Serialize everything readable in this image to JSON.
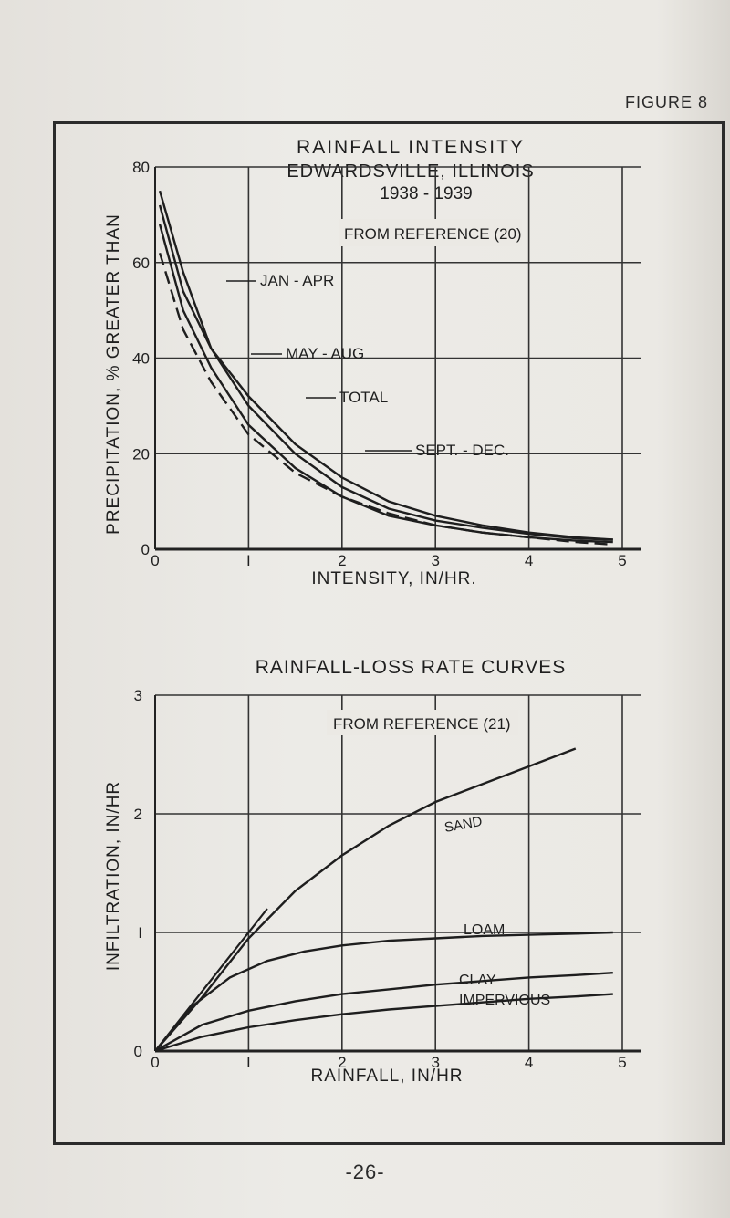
{
  "figure_label": "FIGURE 8",
  "page_number": "-26-",
  "chart_data": [
    {
      "type": "line",
      "title": "RAINFALL INTENSITY",
      "subtitle": "EDWARDSVILLE, ILLINOIS",
      "period": "1938 - 1939",
      "source_note": "FROM REFERENCE (20)",
      "xlabel": "INTENSITY, IN/HR.",
      "ylabel": "PRECIPITATION, % GREATER THAN",
      "xlim": [
        0,
        5
      ],
      "ylim": [
        0,
        80
      ],
      "x_ticks": [
        0,
        1,
        2,
        3,
        4,
        5
      ],
      "x_tick_labels": [
        "0",
        "I",
        "2",
        "3",
        "4",
        "5"
      ],
      "y_ticks": [
        0,
        20,
        40,
        60,
        80
      ],
      "y_tick_labels": [
        "0",
        "20",
        "40",
        "60",
        "80"
      ],
      "grid": true,
      "series": [
        {
          "name": "JAN - APR",
          "style": "solid",
          "x": [
            0.05,
            0.3,
            0.6,
            1.0,
            1.5,
            2.0,
            2.5,
            3.0,
            3.5,
            4.0,
            4.5,
            4.9
          ],
          "y": [
            75,
            58,
            42,
            30,
            20,
            13,
            8.5,
            6,
            4.5,
            3.2,
            2.3,
            2
          ]
        },
        {
          "name": "MAY - AUG",
          "style": "solid",
          "x": [
            0.05,
            0.3,
            0.6,
            1.0,
            1.5,
            2.0,
            2.5,
            3.0,
            3.5,
            4.0,
            4.5,
            4.9
          ],
          "y": [
            72,
            54,
            42,
            32,
            22,
            15,
            10,
            7,
            5,
            3.5,
            2.5,
            2
          ]
        },
        {
          "name": "TOTAL",
          "style": "solid",
          "x": [
            0.05,
            0.3,
            0.6,
            1.0,
            1.5,
            2.0,
            2.5,
            3.0,
            3.5,
            4.0,
            4.5,
            4.9
          ],
          "y": [
            68,
            50,
            38,
            26,
            17,
            11,
            7,
            5,
            3.5,
            2.5,
            1.8,
            1.5
          ]
        },
        {
          "name": "SEPT. - DEC.",
          "style": "dashed",
          "x": [
            0.05,
            0.3,
            0.6,
            1.0,
            1.5,
            2.0,
            2.5,
            3.0,
            3.5,
            4.0,
            4.5,
            4.9
          ],
          "y": [
            62,
            46,
            35,
            24,
            16,
            11,
            7.5,
            5,
            3.5,
            2.5,
            1.5,
            1
          ]
        }
      ]
    },
    {
      "type": "line",
      "title": "RAINFALL-LOSS RATE CURVES",
      "source_note": "FROM REFERENCE (21)",
      "xlabel": "RAINFALL, IN/HR",
      "ylabel": "INFILTRATION, IN/HR",
      "xlim": [
        0,
        5
      ],
      "ylim": [
        0,
        3
      ],
      "x_ticks": [
        0,
        1,
        2,
        3,
        4,
        5
      ],
      "x_tick_labels": [
        "0",
        "I",
        "2",
        "3",
        "4",
        "5"
      ],
      "y_ticks": [
        0,
        1,
        2,
        3
      ],
      "y_tick_labels": [
        "0",
        "I",
        "2",
        "3"
      ],
      "grid": true,
      "reference_line": {
        "x": [
          0,
          1.2
        ],
        "y": [
          0,
          1.2
        ]
      },
      "series": [
        {
          "name": "SAND",
          "x": [
            0,
            0.5,
            1.0,
            1.5,
            2.0,
            2.5,
            3.0,
            3.5,
            4.0,
            4.5
          ],
          "y": [
            0,
            0.45,
            0.95,
            1.35,
            1.65,
            1.9,
            2.1,
            2.25,
            2.4,
            2.55
          ]
        },
        {
          "name": "LOAM",
          "x": [
            0,
            0.4,
            0.8,
            1.2,
            1.6,
            2.0,
            2.5,
            3.0,
            3.5,
            4.0,
            4.5,
            4.9
          ],
          "y": [
            0,
            0.38,
            0.62,
            0.76,
            0.84,
            0.89,
            0.93,
            0.95,
            0.97,
            0.98,
            0.99,
            1.0
          ]
        },
        {
          "name": "CLAY",
          "x": [
            0,
            0.5,
            1.0,
            1.5,
            2.0,
            2.5,
            3.0,
            3.5,
            4.0,
            4.5,
            4.9
          ],
          "y": [
            0,
            0.22,
            0.34,
            0.42,
            0.48,
            0.52,
            0.56,
            0.59,
            0.62,
            0.64,
            0.66
          ]
        },
        {
          "name": "IMPERVIOUS",
          "x": [
            0,
            0.5,
            1.0,
            1.5,
            2.0,
            2.5,
            3.0,
            3.5,
            4.0,
            4.5,
            4.9
          ],
          "y": [
            0,
            0.12,
            0.2,
            0.26,
            0.31,
            0.35,
            0.38,
            0.41,
            0.44,
            0.46,
            0.48
          ]
        }
      ]
    }
  ]
}
